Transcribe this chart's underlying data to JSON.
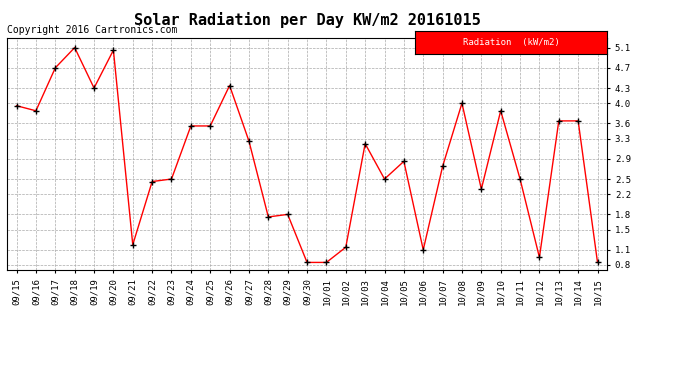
{
  "title": "Solar Radiation per Day KW/m2 20161015",
  "copyright_text": "Copyright 2016 Cartronics.com",
  "legend_label": "Radiation  (kW/m2)",
  "dates": [
    "09/15",
    "09/16",
    "09/17",
    "09/18",
    "09/19",
    "09/20",
    "09/21",
    "09/22",
    "09/23",
    "09/24",
    "09/25",
    "09/26",
    "09/27",
    "09/28",
    "09/29",
    "09/30",
    "10/01",
    "10/02",
    "10/03",
    "10/04",
    "10/05",
    "10/06",
    "10/07",
    "10/08",
    "10/09",
    "10/10",
    "10/11",
    "10/12",
    "10/13",
    "10/14",
    "10/15"
  ],
  "values": [
    3.95,
    3.85,
    4.7,
    5.1,
    4.3,
    5.05,
    1.2,
    2.45,
    2.5,
    3.55,
    3.55,
    4.35,
    3.25,
    1.75,
    1.8,
    0.85,
    0.85,
    1.15,
    3.2,
    2.5,
    2.85,
    1.1,
    2.75,
    4.0,
    2.3,
    3.85,
    2.5,
    0.95,
    3.65,
    3.65,
    0.85
  ],
  "ylim": [
    0.7,
    5.3
  ],
  "yticks": [
    0.8,
    1.1,
    1.5,
    1.8,
    2.2,
    2.5,
    2.9,
    3.3,
    3.6,
    4.0,
    4.3,
    4.7,
    5.1
  ],
  "line_color": "red",
  "marker": "+",
  "marker_color": "black",
  "grid_color": "#aaaaaa",
  "bg_color": "white",
  "legend_bg": "red",
  "legend_text_color": "white",
  "title_fontsize": 11,
  "tick_fontsize": 6.5,
  "copyright_fontsize": 7
}
